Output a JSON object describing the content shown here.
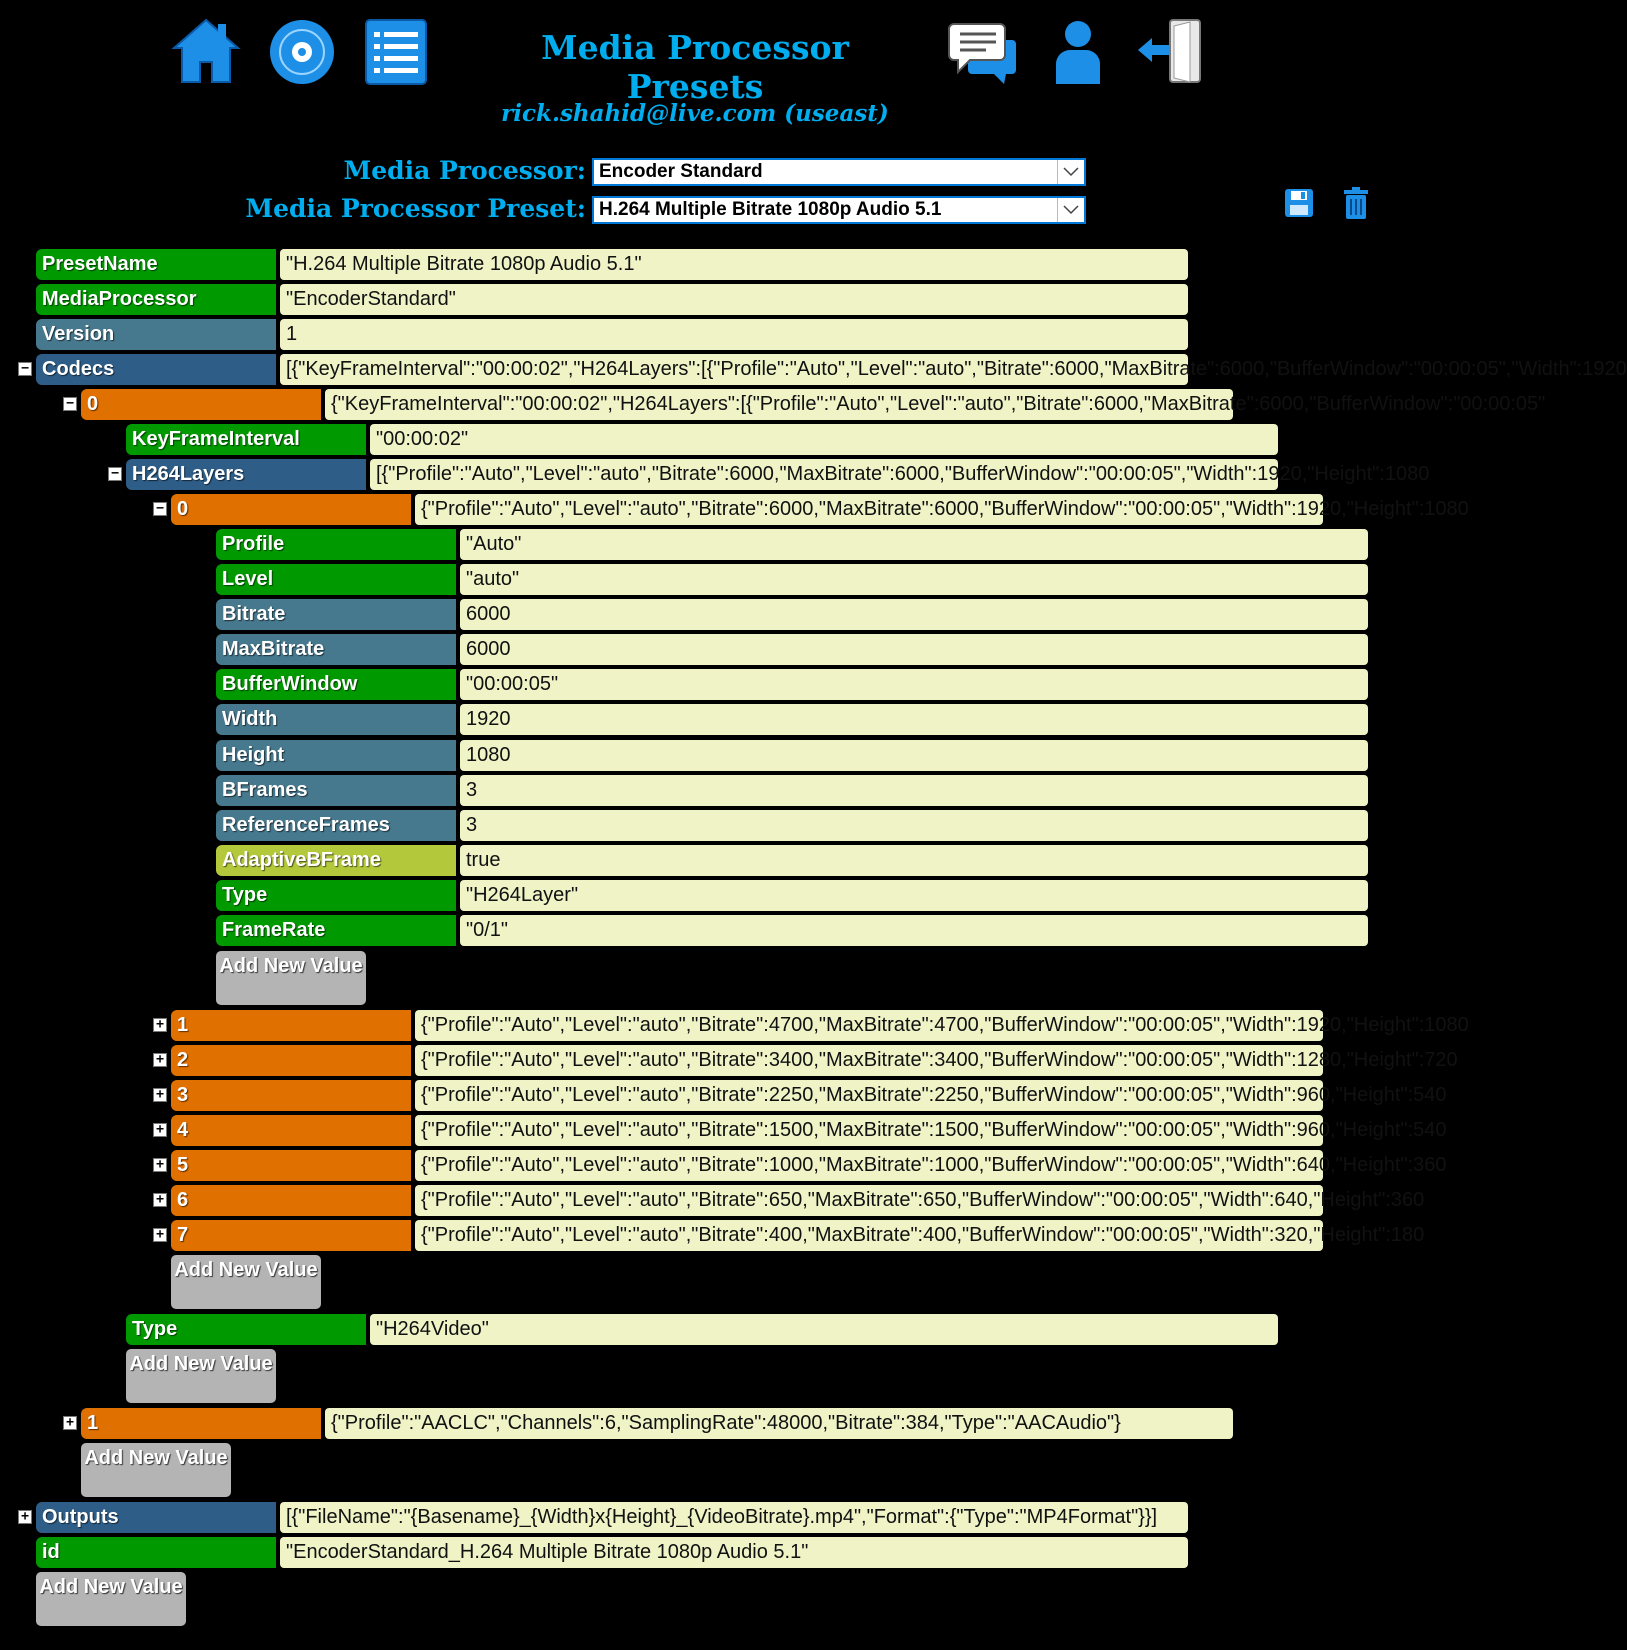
{
  "header": {
    "title": "Media Processor Presets",
    "account": "rick.shahid@live.com (useast)",
    "icons": [
      "home-icon",
      "disc-icon",
      "list-icon",
      "chat-icon",
      "user-icon",
      "logout-icon"
    ]
  },
  "selectors": {
    "processor_label": "Media Processor:",
    "processor_value": "Encoder Standard",
    "preset_label": "Media Processor Preset:",
    "preset_value": "H.264 Multiple Bitrate 1080p Audio 5.1"
  },
  "colors": {
    "accent": "#00aeef",
    "key_green": "#009a00",
    "key_blue": "#2e5e88",
    "key_steel": "#46788e",
    "key_orange": "#e07000",
    "key_lime": "#b4c83c",
    "value_bg": "#eff3c6",
    "button_gray": "#b4b4b4"
  },
  "add_button_label": "Add New Value",
  "rows": [
    {
      "key": "PresetName",
      "value": "\"H.264 Multiple Bitrate 1080p Audio 5.1\""
    },
    {
      "key": "MediaProcessor",
      "value": "\"EncoderStandard\""
    },
    {
      "key": "Version",
      "value": "1"
    },
    {
      "key": "Codecs",
      "value": "[{\"KeyFrameInterval\":\"00:00:02\",\"H264Layers\":[{\"Profile\":\"Auto\",\"Level\":\"auto\",\"Bitrate\":6000,\"MaxBitrate\":6000,\"BufferWindow\":\"00:00:05\",\"Width\":1920"
    },
    {
      "key": "0",
      "value": "{\"KeyFrameInterval\":\"00:00:02\",\"H264Layers\":[{\"Profile\":\"Auto\",\"Level\":\"auto\",\"Bitrate\":6000,\"MaxBitrate\":6000,\"BufferWindow\":\"00:00:05\""
    },
    {
      "key": "KeyFrameInterval",
      "value": "\"00:00:02\""
    },
    {
      "key": "H264Layers",
      "value": "[{\"Profile\":\"Auto\",\"Level\":\"auto\",\"Bitrate\":6000,\"MaxBitrate\":6000,\"BufferWindow\":\"00:00:05\",\"Width\":1920,\"Height\":1080"
    },
    {
      "key": "0",
      "value": "{\"Profile\":\"Auto\",\"Level\":\"auto\",\"Bitrate\":6000,\"MaxBitrate\":6000,\"BufferWindow\":\"00:00:05\",\"Width\":1920,\"Height\":1080"
    },
    {
      "key": "Profile",
      "value": "\"Auto\""
    },
    {
      "key": "Level",
      "value": "\"auto\""
    },
    {
      "key": "Bitrate",
      "value": "6000"
    },
    {
      "key": "MaxBitrate",
      "value": "6000"
    },
    {
      "key": "BufferWindow",
      "value": "\"00:00:05\""
    },
    {
      "key": "Width",
      "value": "1920"
    },
    {
      "key": "Height",
      "value": "1080"
    },
    {
      "key": "BFrames",
      "value": "3"
    },
    {
      "key": "ReferenceFrames",
      "value": "3"
    },
    {
      "key": "AdaptiveBFrame",
      "value": "true"
    },
    {
      "key": "Type",
      "value": "\"H264Layer\""
    },
    {
      "key": "FrameRate",
      "value": "\"0/1\""
    },
    {
      "key": "1",
      "value": "{\"Profile\":\"Auto\",\"Level\":\"auto\",\"Bitrate\":4700,\"MaxBitrate\":4700,\"BufferWindow\":\"00:00:05\",\"Width\":1920,\"Height\":1080"
    },
    {
      "key": "2",
      "value": "{\"Profile\":\"Auto\",\"Level\":\"auto\",\"Bitrate\":3400,\"MaxBitrate\":3400,\"BufferWindow\":\"00:00:05\",\"Width\":1280,\"Height\":720"
    },
    {
      "key": "3",
      "value": "{\"Profile\":\"Auto\",\"Level\":\"auto\",\"Bitrate\":2250,\"MaxBitrate\":2250,\"BufferWindow\":\"00:00:05\",\"Width\":960,\"Height\":540"
    },
    {
      "key": "4",
      "value": "{\"Profile\":\"Auto\",\"Level\":\"auto\",\"Bitrate\":1500,\"MaxBitrate\":1500,\"BufferWindow\":\"00:00:05\",\"Width\":960,\"Height\":540"
    },
    {
      "key": "5",
      "value": "{\"Profile\":\"Auto\",\"Level\":\"auto\",\"Bitrate\":1000,\"MaxBitrate\":1000,\"BufferWindow\":\"00:00:05\",\"Width\":640,\"Height\":360"
    },
    {
      "key": "6",
      "value": "{\"Profile\":\"Auto\",\"Level\":\"auto\",\"Bitrate\":650,\"MaxBitrate\":650,\"BufferWindow\":\"00:00:05\",\"Width\":640,\"Height\":360"
    },
    {
      "key": "7",
      "value": "{\"Profile\":\"Auto\",\"Level\":\"auto\",\"Bitrate\":400,\"MaxBitrate\":400,\"BufferWindow\":\"00:00:05\",\"Width\":320,\"Height\":180"
    },
    {
      "key": "Type",
      "value": "\"H264Video\""
    },
    {
      "key": "1",
      "value": "{\"Profile\":\"AACLC\",\"Channels\":6,\"SamplingRate\":48000,\"Bitrate\":384,\"Type\":\"AACAudio\"}"
    },
    {
      "key": "Outputs",
      "value": "[{\"FileName\":\"{Basename}_{Width}x{Height}_{VideoBitrate}.mp4\",\"Format\":{\"Type\":\"MP4Format\"}}]"
    },
    {
      "key": "id",
      "value": "\"EncoderStandard_H.264 Multiple Bitrate 1080p Audio 5.1\""
    }
  ]
}
